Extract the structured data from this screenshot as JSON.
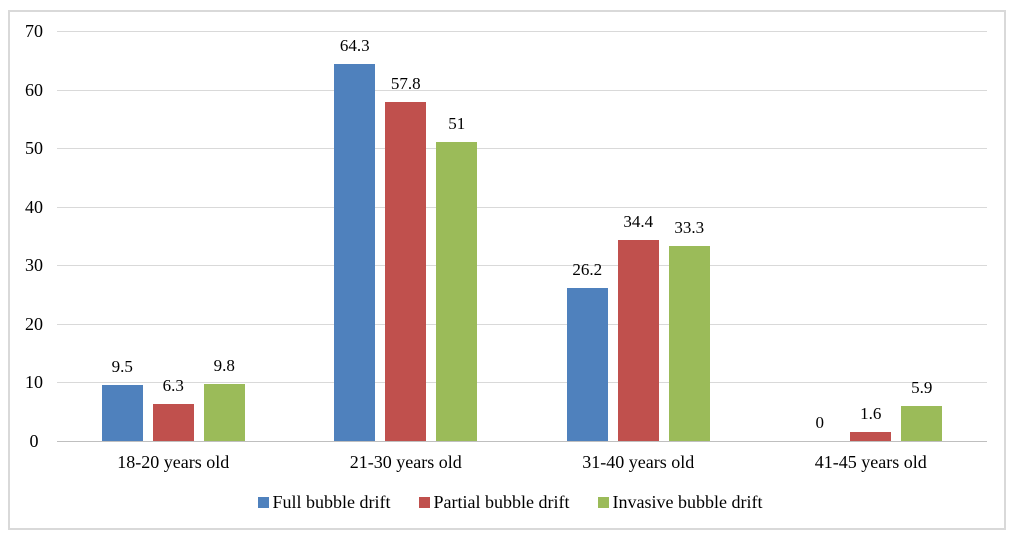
{
  "chart_data": {
    "type": "bar",
    "categories": [
      "18-20 years old",
      "21-30 years old",
      "31-40 years old",
      "41-45 years old"
    ],
    "series": [
      {
        "name": "Full bubble drift",
        "color": "#4f81bd",
        "values": [
          9.5,
          64.3,
          26.2,
          0
        ],
        "labels": [
          "9.5",
          "64.3",
          "26.2",
          "0"
        ]
      },
      {
        "name": "Partial bubble drift",
        "color": "#c0504d",
        "values": [
          6.3,
          57.8,
          34.4,
          1.6
        ],
        "labels": [
          "6.3",
          "57.8",
          "34.4",
          "1.6"
        ]
      },
      {
        "name": "Invasive bubble drift",
        "color": "#9bbb59",
        "values": [
          9.8,
          51,
          33.3,
          5.9
        ],
        "labels": [
          "9.8",
          "51",
          "33.3",
          "5.9"
        ]
      }
    ],
    "y_axis": {
      "min": 0,
      "max": 70,
      "tick_interval": 10,
      "ticks": [
        0,
        10,
        20,
        30,
        40,
        50,
        60,
        70
      ]
    },
    "grid": true,
    "legend_position": "bottom",
    "style": {
      "gridline_color": "#d9d9d9",
      "axis_line_color": "#bfbfbf",
      "frame_border_color": "#d9d9d9",
      "text_color": "#000000",
      "background_color": "#ffffff"
    }
  }
}
